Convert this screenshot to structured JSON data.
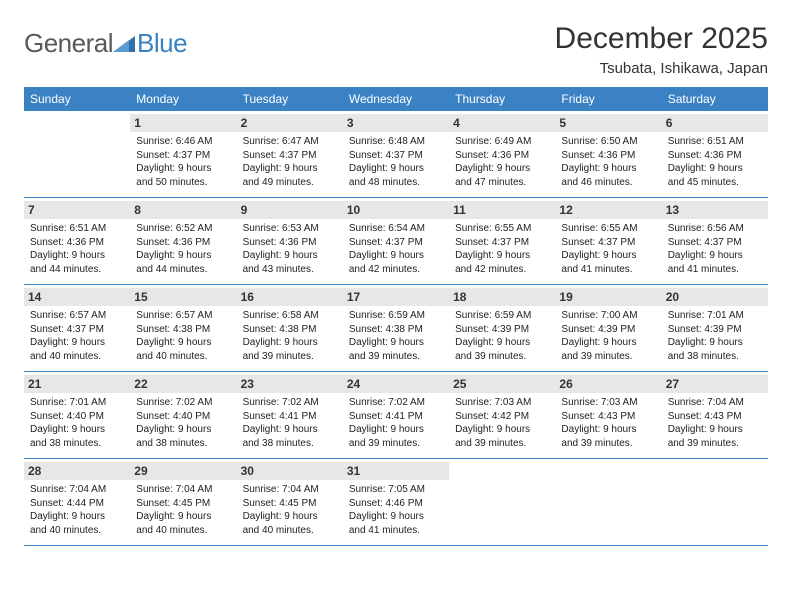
{
  "logo": {
    "general": "General",
    "blue": "Blue"
  },
  "header": {
    "month": "December 2025",
    "location": "Tsubata, Ishikawa, Japan"
  },
  "colors": {
    "brand": "#3b82c4",
    "headerText": "#333333",
    "grey": "#58595b",
    "numBg": "#e7e7e7"
  },
  "calendar": {
    "dayNames": [
      "Sunday",
      "Monday",
      "Tuesday",
      "Wednesday",
      "Thursday",
      "Friday",
      "Saturday"
    ],
    "startOffset": 1,
    "days": [
      {
        "n": 1,
        "sunrise": "Sunrise: 6:46 AM",
        "sunset": "Sunset: 4:37 PM",
        "day1": "Daylight: 9 hours",
        "day2": "and 50 minutes."
      },
      {
        "n": 2,
        "sunrise": "Sunrise: 6:47 AM",
        "sunset": "Sunset: 4:37 PM",
        "day1": "Daylight: 9 hours",
        "day2": "and 49 minutes."
      },
      {
        "n": 3,
        "sunrise": "Sunrise: 6:48 AM",
        "sunset": "Sunset: 4:37 PM",
        "day1": "Daylight: 9 hours",
        "day2": "and 48 minutes."
      },
      {
        "n": 4,
        "sunrise": "Sunrise: 6:49 AM",
        "sunset": "Sunset: 4:36 PM",
        "day1": "Daylight: 9 hours",
        "day2": "and 47 minutes."
      },
      {
        "n": 5,
        "sunrise": "Sunrise: 6:50 AM",
        "sunset": "Sunset: 4:36 PM",
        "day1": "Daylight: 9 hours",
        "day2": "and 46 minutes."
      },
      {
        "n": 6,
        "sunrise": "Sunrise: 6:51 AM",
        "sunset": "Sunset: 4:36 PM",
        "day1": "Daylight: 9 hours",
        "day2": "and 45 minutes."
      },
      {
        "n": 7,
        "sunrise": "Sunrise: 6:51 AM",
        "sunset": "Sunset: 4:36 PM",
        "day1": "Daylight: 9 hours",
        "day2": "and 44 minutes."
      },
      {
        "n": 8,
        "sunrise": "Sunrise: 6:52 AM",
        "sunset": "Sunset: 4:36 PM",
        "day1": "Daylight: 9 hours",
        "day2": "and 44 minutes."
      },
      {
        "n": 9,
        "sunrise": "Sunrise: 6:53 AM",
        "sunset": "Sunset: 4:36 PM",
        "day1": "Daylight: 9 hours",
        "day2": "and 43 minutes."
      },
      {
        "n": 10,
        "sunrise": "Sunrise: 6:54 AM",
        "sunset": "Sunset: 4:37 PM",
        "day1": "Daylight: 9 hours",
        "day2": "and 42 minutes."
      },
      {
        "n": 11,
        "sunrise": "Sunrise: 6:55 AM",
        "sunset": "Sunset: 4:37 PM",
        "day1": "Daylight: 9 hours",
        "day2": "and 42 minutes."
      },
      {
        "n": 12,
        "sunrise": "Sunrise: 6:55 AM",
        "sunset": "Sunset: 4:37 PM",
        "day1": "Daylight: 9 hours",
        "day2": "and 41 minutes."
      },
      {
        "n": 13,
        "sunrise": "Sunrise: 6:56 AM",
        "sunset": "Sunset: 4:37 PM",
        "day1": "Daylight: 9 hours",
        "day2": "and 41 minutes."
      },
      {
        "n": 14,
        "sunrise": "Sunrise: 6:57 AM",
        "sunset": "Sunset: 4:37 PM",
        "day1": "Daylight: 9 hours",
        "day2": "and 40 minutes."
      },
      {
        "n": 15,
        "sunrise": "Sunrise: 6:57 AM",
        "sunset": "Sunset: 4:38 PM",
        "day1": "Daylight: 9 hours",
        "day2": "and 40 minutes."
      },
      {
        "n": 16,
        "sunrise": "Sunrise: 6:58 AM",
        "sunset": "Sunset: 4:38 PM",
        "day1": "Daylight: 9 hours",
        "day2": "and 39 minutes."
      },
      {
        "n": 17,
        "sunrise": "Sunrise: 6:59 AM",
        "sunset": "Sunset: 4:38 PM",
        "day1": "Daylight: 9 hours",
        "day2": "and 39 minutes."
      },
      {
        "n": 18,
        "sunrise": "Sunrise: 6:59 AM",
        "sunset": "Sunset: 4:39 PM",
        "day1": "Daylight: 9 hours",
        "day2": "and 39 minutes."
      },
      {
        "n": 19,
        "sunrise": "Sunrise: 7:00 AM",
        "sunset": "Sunset: 4:39 PM",
        "day1": "Daylight: 9 hours",
        "day2": "and 39 minutes."
      },
      {
        "n": 20,
        "sunrise": "Sunrise: 7:01 AM",
        "sunset": "Sunset: 4:39 PM",
        "day1": "Daylight: 9 hours",
        "day2": "and 38 minutes."
      },
      {
        "n": 21,
        "sunrise": "Sunrise: 7:01 AM",
        "sunset": "Sunset: 4:40 PM",
        "day1": "Daylight: 9 hours",
        "day2": "and 38 minutes."
      },
      {
        "n": 22,
        "sunrise": "Sunrise: 7:02 AM",
        "sunset": "Sunset: 4:40 PM",
        "day1": "Daylight: 9 hours",
        "day2": "and 38 minutes."
      },
      {
        "n": 23,
        "sunrise": "Sunrise: 7:02 AM",
        "sunset": "Sunset: 4:41 PM",
        "day1": "Daylight: 9 hours",
        "day2": "and 38 minutes."
      },
      {
        "n": 24,
        "sunrise": "Sunrise: 7:02 AM",
        "sunset": "Sunset: 4:41 PM",
        "day1": "Daylight: 9 hours",
        "day2": "and 39 minutes."
      },
      {
        "n": 25,
        "sunrise": "Sunrise: 7:03 AM",
        "sunset": "Sunset: 4:42 PM",
        "day1": "Daylight: 9 hours",
        "day2": "and 39 minutes."
      },
      {
        "n": 26,
        "sunrise": "Sunrise: 7:03 AM",
        "sunset": "Sunset: 4:43 PM",
        "day1": "Daylight: 9 hours",
        "day2": "and 39 minutes."
      },
      {
        "n": 27,
        "sunrise": "Sunrise: 7:04 AM",
        "sunset": "Sunset: 4:43 PM",
        "day1": "Daylight: 9 hours",
        "day2": "and 39 minutes."
      },
      {
        "n": 28,
        "sunrise": "Sunrise: 7:04 AM",
        "sunset": "Sunset: 4:44 PM",
        "day1": "Daylight: 9 hours",
        "day2": "and 40 minutes."
      },
      {
        "n": 29,
        "sunrise": "Sunrise: 7:04 AM",
        "sunset": "Sunset: 4:45 PM",
        "day1": "Daylight: 9 hours",
        "day2": "and 40 minutes."
      },
      {
        "n": 30,
        "sunrise": "Sunrise: 7:04 AM",
        "sunset": "Sunset: 4:45 PM",
        "day1": "Daylight: 9 hours",
        "day2": "and 40 minutes."
      },
      {
        "n": 31,
        "sunrise": "Sunrise: 7:05 AM",
        "sunset": "Sunset: 4:46 PM",
        "day1": "Daylight: 9 hours",
        "day2": "and 41 minutes."
      }
    ]
  }
}
